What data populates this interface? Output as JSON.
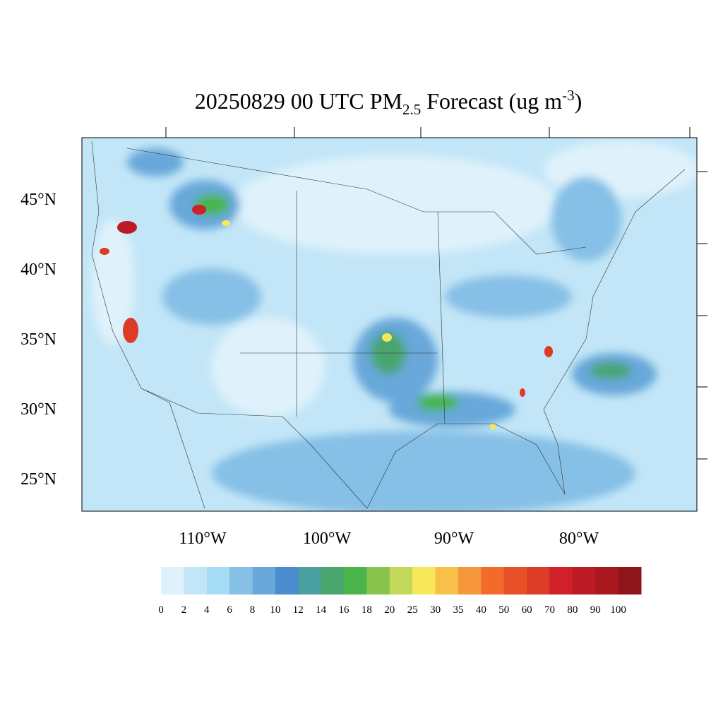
{
  "title": {
    "main": "20250829 00 UTC PM",
    "sub": "2.5",
    "mid": " Forecast (ug m",
    "sup": "-3",
    "end": ")"
  },
  "map": {
    "lat_labels": [
      "45°N",
      "40°N",
      "35°N",
      "30°N",
      "25°N"
    ],
    "lon_labels": [
      "110°W",
      "100°W",
      "90°W",
      "80°W"
    ]
  },
  "colorbar": {
    "labels": [
      "0",
      "2",
      "4",
      "6",
      "8",
      "10",
      "12",
      "14",
      "16",
      "18",
      "20",
      "25",
      "30",
      "35",
      "40",
      "50",
      "60",
      "70",
      "80",
      "90",
      "100"
    ],
    "colors": [
      "#dff2fb",
      "#c2e6f7",
      "#a6dbf5",
      "#86c0e6",
      "#68a8da",
      "#4a8ccd",
      "#4a9fa0",
      "#4aa56d",
      "#4ab54a",
      "#88c34e",
      "#c3d85a",
      "#f7e85b",
      "#f8c048",
      "#f6973b",
      "#f26b2b",
      "#e85128",
      "#dc3b26",
      "#d0202a",
      "#bc1a24",
      "#a8181e",
      "#8e151a"
    ]
  }
}
